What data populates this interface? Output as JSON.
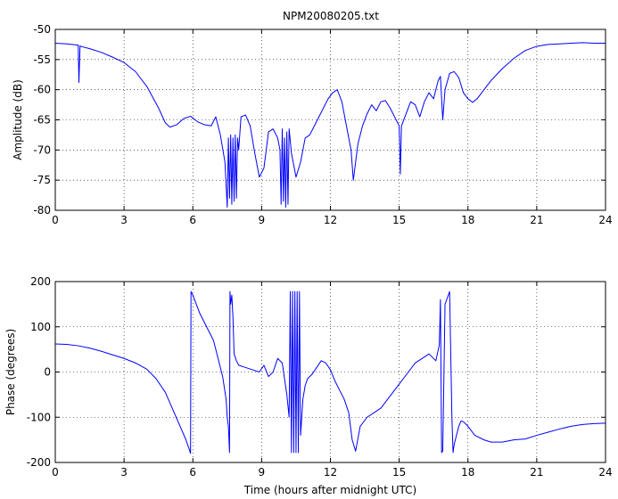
{
  "title": "NPM20080205.txt",
  "colors": {
    "line": "#0000ff",
    "axes": "#000000",
    "grid": "#000000",
    "background": "#ffffff"
  },
  "chart_data": [
    {
      "type": "line",
      "title": "NPM20080205.txt",
      "xlabel": "",
      "ylabel": "Amplitude (dB)",
      "xlim": [
        0,
        24
      ],
      "ylim": [
        -80,
        -50
      ],
      "xticks": [
        0,
        3,
        6,
        9,
        12,
        15,
        18,
        21,
        24
      ],
      "yticks": [
        -80,
        -75,
        -70,
        -65,
        -60,
        -55,
        -50
      ],
      "grid": true,
      "x": [
        0,
        0.5,
        1.0,
        1.03,
        1.08,
        1.1,
        1.5,
        2,
        2.5,
        3,
        3.5,
        4,
        4.5,
        4.8,
        5,
        5.3,
        5.6,
        5.9,
        6.2,
        6.5,
        6.8,
        7.0,
        7.2,
        7.4,
        7.5,
        7.55,
        7.6,
        7.65,
        7.7,
        7.75,
        7.8,
        7.85,
        7.9,
        7.95,
        8.0,
        8.1,
        8.3,
        8.5,
        8.7,
        8.9,
        9.1,
        9.3,
        9.5,
        9.7,
        9.8,
        9.85,
        9.9,
        9.95,
        10.0,
        10.05,
        10.1,
        10.15,
        10.2,
        10.3,
        10.5,
        10.7,
        10.9,
        11.1,
        11.3,
        11.5,
        11.7,
        11.9,
        12.1,
        12.3,
        12.5,
        12.7,
        12.9,
        13.0,
        13.2,
        13.4,
        13.6,
        13.8,
        14.0,
        14.2,
        14.4,
        14.6,
        14.8,
        15.0,
        15.05,
        15.1,
        15.3,
        15.5,
        15.7,
        15.9,
        16.1,
        16.3,
        16.5,
        16.7,
        16.8,
        16.9,
        17.0,
        17.2,
        17.4,
        17.6,
        17.8,
        18.0,
        18.2,
        18.4,
        18.7,
        19,
        19.5,
        20,
        20.5,
        21,
        21.5,
        22,
        22.5,
        23,
        23.5,
        24
      ],
      "series": [
        {
          "values": [
            -52.3,
            -52.4,
            -52.6,
            -58.8,
            -52.7,
            -52.8,
            -53.2,
            -53.8,
            -54.6,
            -55.5,
            -57.0,
            -59.5,
            -63.0,
            -65.5,
            -66.2,
            -65.8,
            -64.8,
            -64.4,
            -65.3,
            -65.8,
            -66.0,
            -64.5,
            -67.5,
            -72.0,
            -79.5,
            -68.0,
            -78.0,
            -67.5,
            -79.0,
            -68.0,
            -78.5,
            -67.5,
            -78.0,
            -68.0,
            -70.0,
            -64.5,
            -64.2,
            -66.0,
            -70.5,
            -74.5,
            -73.0,
            -67.0,
            -66.5,
            -68.0,
            -70.0,
            -79.0,
            -66.5,
            -78.5,
            -68.0,
            -79.5,
            -67.0,
            -79.0,
            -66.5,
            -70.5,
            -74.5,
            -72.0,
            -68.0,
            -67.5,
            -66.0,
            -64.5,
            -63.0,
            -61.5,
            -60.5,
            -60.0,
            -62.0,
            -66.0,
            -70.0,
            -75.0,
            -69.0,
            -66.0,
            -64.0,
            -62.5,
            -63.5,
            -62.0,
            -61.8,
            -63.0,
            -64.5,
            -66.0,
            -74.0,
            -66.0,
            -64.0,
            -62.0,
            -62.5,
            -64.5,
            -62.0,
            -60.5,
            -61.5,
            -58.5,
            -57.8,
            -65.0,
            -60.0,
            -57.3,
            -57.0,
            -58.0,
            -60.5,
            -61.5,
            -62.1,
            -61.5,
            -60.0,
            -58.5,
            -56.5,
            -54.8,
            -53.5,
            -52.8,
            -52.5,
            -52.4,
            -52.3,
            -52.2,
            -52.3,
            -52.3
          ]
        }
      ]
    },
    {
      "type": "line",
      "title": "",
      "xlabel": "Time (hours after midnight UTC)",
      "ylabel": "Phase (degrees)",
      "xlim": [
        0,
        24
      ],
      "ylim": [
        -200,
        200
      ],
      "xticks": [
        0,
        3,
        6,
        9,
        12,
        15,
        18,
        21,
        24
      ],
      "yticks": [
        -200,
        -100,
        0,
        100,
        200
      ],
      "grid": true,
      "x": [
        0,
        0.5,
        1,
        1.5,
        2,
        2.5,
        3,
        3.5,
        4,
        4.4,
        4.8,
        5.1,
        5.4,
        5.7,
        5.85,
        5.9,
        5.92,
        6.0,
        6.3,
        6.6,
        6.9,
        7.1,
        7.3,
        7.45,
        7.5,
        7.55,
        7.6,
        7.62,
        7.65,
        7.7,
        7.75,
        7.8,
        7.9,
        8.0,
        8.3,
        8.6,
        8.9,
        9.1,
        9.3,
        9.5,
        9.7,
        9.9,
        10.1,
        10.2,
        10.25,
        10.3,
        10.35,
        10.4,
        10.45,
        10.5,
        10.55,
        10.6,
        10.65,
        10.7,
        10.8,
        10.9,
        11.0,
        11.2,
        11.4,
        11.6,
        11.8,
        12.0,
        12.2,
        12.4,
        12.6,
        12.8,
        12.95,
        13.1,
        13.3,
        13.6,
        13.9,
        14.2,
        14.5,
        14.8,
        15.1,
        15.4,
        15.7,
        16.0,
        16.3,
        16.6,
        16.75,
        16.8,
        16.85,
        16.9,
        17.0,
        17.2,
        17.3,
        17.35,
        17.4,
        17.5,
        17.6,
        17.7,
        17.8,
        18.0,
        18.3,
        18.7,
        19,
        19.5,
        20,
        20.5,
        21,
        21.5,
        22,
        22.5,
        23,
        23.5,
        24
      ],
      "series": [
        {
          "values": [
            62,
            61,
            58,
            53,
            46,
            38,
            30,
            20,
            6,
            -15,
            -45,
            -80,
            -115,
            -150,
            -172,
            -180,
            178,
            170,
            130,
            100,
            70,
            30,
            -10,
            -60,
            -100,
            -120,
            -178,
            178,
            150,
            170,
            120,
            40,
            25,
            15,
            10,
            5,
            0,
            15,
            -10,
            0,
            30,
            20,
            -50,
            -100,
            178,
            -178,
            178,
            -178,
            178,
            -178,
            178,
            -178,
            178,
            -140,
            -60,
            -30,
            -15,
            -5,
            10,
            25,
            20,
            5,
            -20,
            -40,
            -60,
            -90,
            -150,
            -175,
            -120,
            -100,
            -90,
            -80,
            -60,
            -40,
            -20,
            0,
            20,
            30,
            40,
            25,
            60,
            160,
            -178,
            -175,
            150,
            178,
            -100,
            -178,
            -160,
            -140,
            -120,
            -108,
            -110,
            -120,
            -140,
            -150,
            -155,
            -155,
            -150,
            -148,
            -140,
            -133,
            -126,
            -120,
            -116,
            -114,
            -113
          ]
        }
      ]
    }
  ]
}
